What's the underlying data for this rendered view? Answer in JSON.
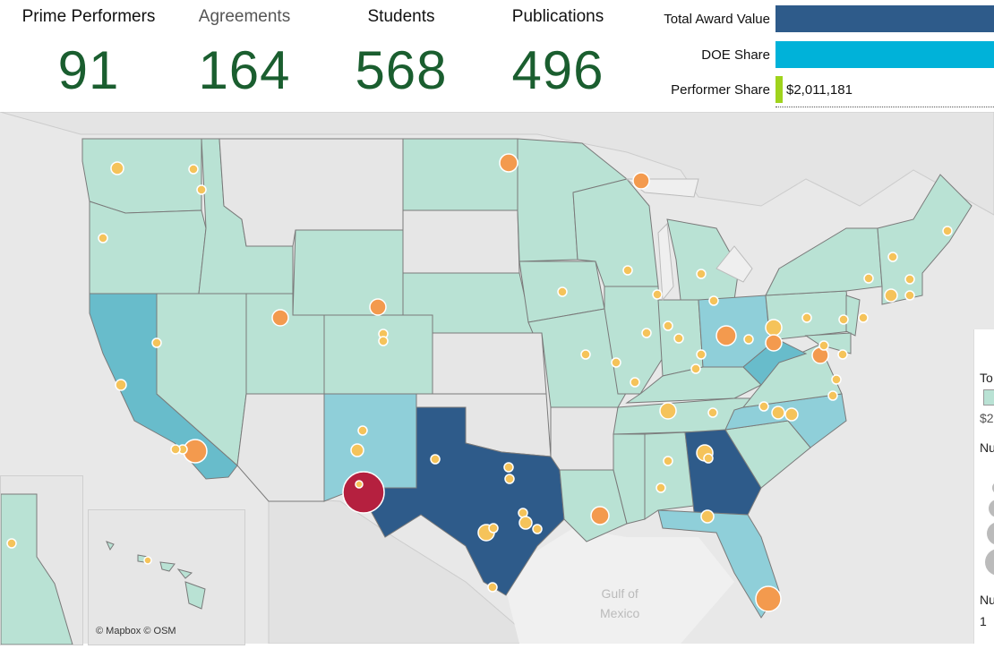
{
  "kpis": [
    {
      "label": "Prime Performers",
      "value": "91"
    },
    {
      "label": "Agreements",
      "value": "164"
    },
    {
      "label": "Students",
      "value": "568"
    },
    {
      "label": "Publications",
      "value": "496"
    }
  ],
  "award_bars": {
    "total_label": "Total Award Value",
    "doe_label": "DOE Share",
    "performer_label": "Performer Share",
    "performer_value": "$2,011,181",
    "colors": {
      "total": "#2e5b8a",
      "doe": "#00b2d9",
      "performer": "#9fd31c"
    }
  },
  "map": {
    "attribution": "© Mapbox © OSM",
    "gulf_line1": "Gulf of",
    "gulf_line2": "Mexico",
    "colors": {
      "land": "#b9e2d4",
      "mid": "#68bccb",
      "dark": "#2e5b8a",
      "border": "#777",
      "bubble_small": "#f5c35a",
      "bubble_mid": "#f39a4e",
      "bubble_big": "#b5203f",
      "background": "#e8e8e8"
    }
  },
  "legend": {
    "title_fragment": "To",
    "value_fragment": "$2",
    "size_title_fragment": "Nu",
    "count_title_fragment": "Nu",
    "count_value_fragment": "1"
  }
}
